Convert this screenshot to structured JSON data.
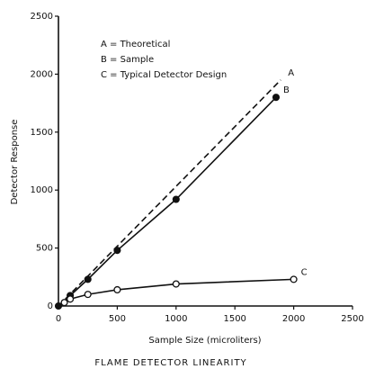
{
  "chart_data": {
    "type": "line",
    "title": "FLAME DETECTOR LINEARITY",
    "xlabel": "Sample Size (microliters)",
    "ylabel": "Detector Response",
    "legend": [
      "A = Theoretical",
      "B = Sample",
      "C = Typical Detector Design"
    ],
    "xlim": [
      0,
      2500
    ],
    "xticks": [
      0,
      500,
      1000,
      1500,
      2000,
      2500
    ],
    "ylim": [
      0,
      2500
    ],
    "yticks": [
      0,
      500,
      1000,
      1500,
      2000,
      2500
    ],
    "grid": false,
    "series": [
      {
        "name": "A",
        "color": "#111111",
        "dash": true,
        "marker": "none",
        "x": [
          0,
          1890
        ],
        "values": [
          0,
          1950
        ]
      },
      {
        "name": "B",
        "color": "#111111",
        "dash": false,
        "marker": "filled",
        "x": [
          0,
          100,
          250,
          500,
          1000,
          1850
        ],
        "values": [
          0,
          90,
          230,
          480,
          920,
          1800
        ]
      },
      {
        "name": "C",
        "color": "#111111",
        "dash": false,
        "marker": "open",
        "x": [
          50,
          100,
          250,
          500,
          1000,
          2000
        ],
        "values": [
          30,
          60,
          100,
          140,
          190,
          230
        ]
      }
    ]
  }
}
